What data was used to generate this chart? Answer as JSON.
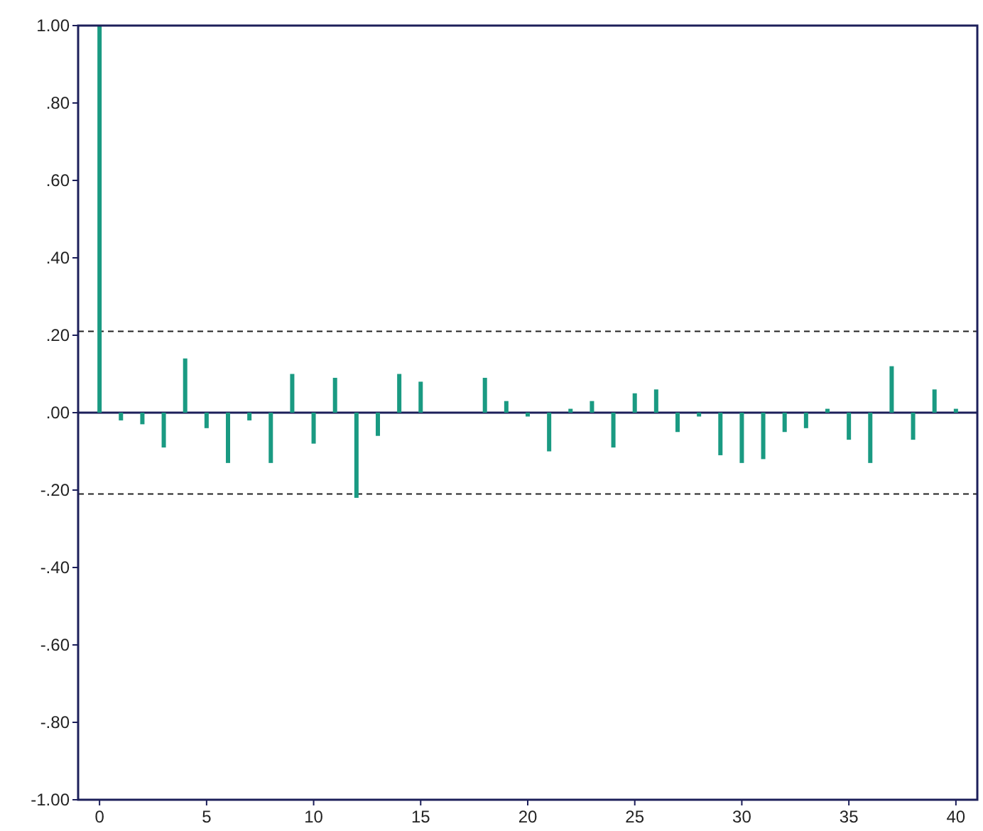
{
  "chart_data": {
    "type": "bar",
    "x": [
      0,
      1,
      2,
      3,
      4,
      5,
      6,
      7,
      8,
      9,
      10,
      11,
      12,
      13,
      14,
      15,
      16,
      17,
      18,
      19,
      20,
      21,
      22,
      23,
      24,
      25,
      26,
      27,
      28,
      29,
      30,
      31,
      32,
      33,
      34,
      35,
      36,
      37,
      38,
      39,
      40
    ],
    "values": [
      1.0,
      -0.02,
      -0.03,
      -0.09,
      0.14,
      -0.04,
      -0.13,
      -0.02,
      -0.13,
      0.1,
      -0.08,
      0.09,
      -0.22,
      -0.06,
      0.1,
      0.08,
      0,
      0,
      0.09,
      0.03,
      -0.01,
      -0.1,
      0.01,
      0.03,
      -0.09,
      0.05,
      0.06,
      -0.05,
      -0.01,
      -0.11,
      -0.13,
      -0.12,
      -0.05,
      -0.04,
      0.01,
      -0.07,
      -0.13,
      0.12,
      -0.07,
      0.06,
      0.01
    ],
    "color": "#1a9a82",
    "xlim": [
      -1,
      41
    ],
    "xticks": [
      0,
      5,
      10,
      15,
      20,
      25,
      30,
      35,
      40
    ],
    "ylim": [
      -1,
      1
    ],
    "yticks": [
      {
        "value": -1,
        "label": "-1.00"
      },
      {
        "value": -0.8,
        "label": "-.80"
      },
      {
        "value": -0.6,
        "label": "-.60"
      },
      {
        "value": -0.4,
        "label": "-.40"
      },
      {
        "value": -0.2,
        "label": "-.20"
      },
      {
        "value": 0,
        "label": ".00"
      },
      {
        "value": 0.2,
        "label": ".20"
      },
      {
        "value": 0.4,
        "label": ".40"
      },
      {
        "value": 0.6,
        "label": ".60"
      },
      {
        "value": 0.8,
        "label": ".80"
      },
      {
        "value": 1,
        "label": "1.00"
      }
    ],
    "ref_lines": [
      {
        "axis": "y",
        "value": 0.21,
        "line_style": "dashed",
        "color": "#222222"
      },
      {
        "axis": "y",
        "value": -0.21,
        "line_style": "dashed",
        "color": "#222222"
      }
    ],
    "grid": false
  }
}
